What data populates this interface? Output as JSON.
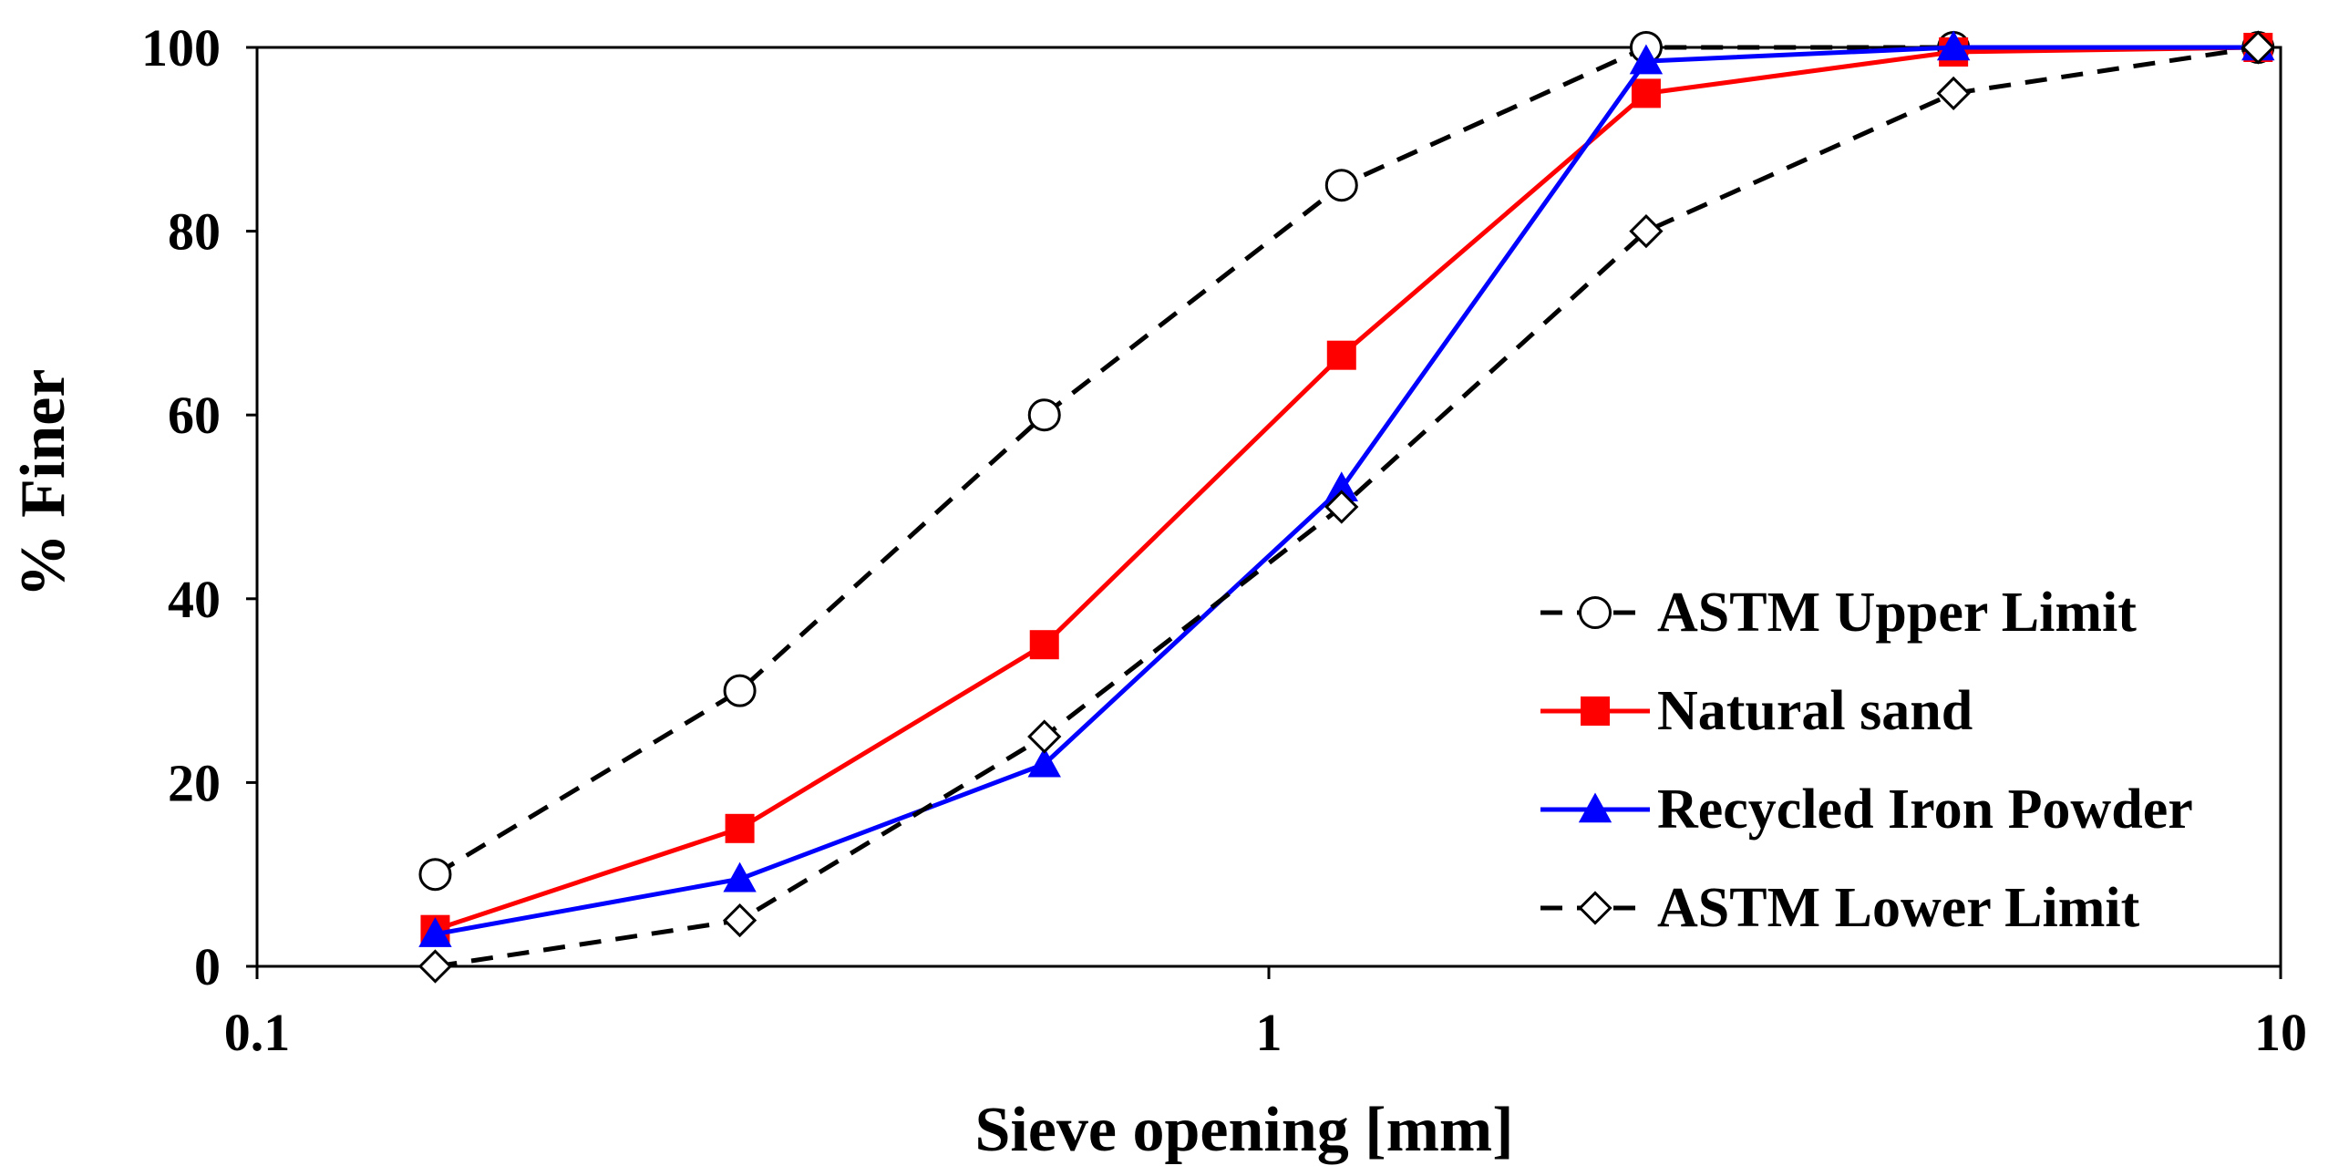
{
  "chart_data": {
    "type": "line",
    "title": "",
    "xlabel": "Sieve opening [mm]",
    "ylabel": "% Finer",
    "xscale": "log",
    "xlim": [
      0.1,
      10
    ],
    "ylim": [
      0,
      100
    ],
    "xticks": [
      0.1,
      1,
      10
    ],
    "xtick_labels": [
      "0.1",
      "1",
      "10"
    ],
    "yticks": [
      0,
      20,
      40,
      60,
      80,
      100
    ],
    "ytick_labels": [
      "0",
      "20",
      "40",
      "60",
      "80",
      "100"
    ],
    "grid": false,
    "legend_position": "right",
    "series": [
      {
        "name": "ASTM Upper Limit",
        "color": "#000000",
        "dash": "dashed",
        "marker": "circle-open",
        "x": [
          0.15,
          0.3,
          0.6,
          1.18,
          2.36,
          4.75,
          9.5
        ],
        "values": [
          10,
          30,
          60,
          85,
          100,
          100,
          100
        ]
      },
      {
        "name": "Natural sand",
        "color": "#ff0000",
        "dash": "solid",
        "marker": "square-filled",
        "x": [
          0.15,
          0.3,
          0.6,
          1.18,
          2.36,
          4.75,
          9.5
        ],
        "values": [
          4,
          15,
          35,
          66.5,
          95,
          99.5,
          100
        ]
      },
      {
        "name": "Recycled Iron Powder",
        "color": "#0000ff",
        "dash": "solid",
        "marker": "triangle-filled",
        "x": [
          0.15,
          0.3,
          0.6,
          1.18,
          2.36,
          4.75,
          9.5
        ],
        "values": [
          3.5,
          9.5,
          22,
          52,
          98.5,
          100,
          100
        ]
      },
      {
        "name": "ASTM Lower Limit",
        "color": "#000000",
        "dash": "dashed",
        "marker": "diamond-open",
        "x": [
          0.15,
          0.3,
          0.6,
          1.18,
          2.36,
          4.75,
          9.5
        ],
        "values": [
          0,
          5,
          25,
          50,
          80,
          95,
          100
        ]
      }
    ]
  }
}
